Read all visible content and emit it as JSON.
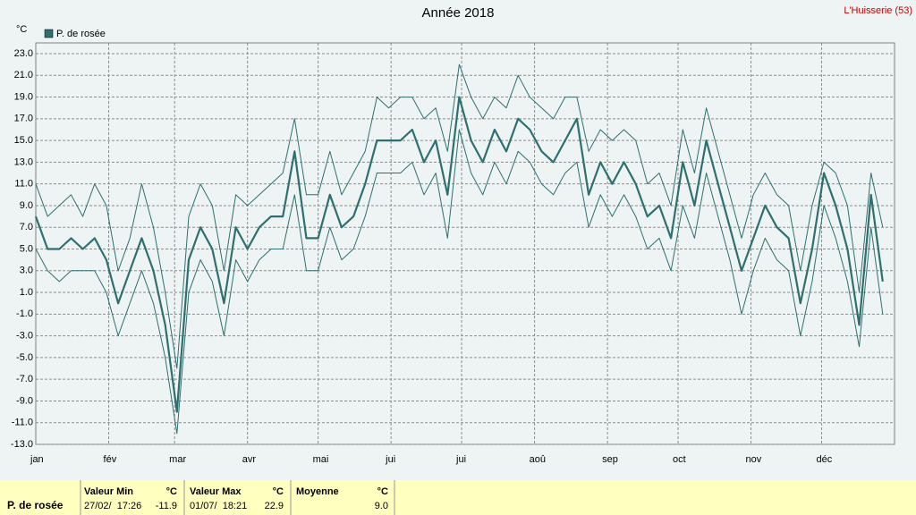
{
  "chart_data": {
    "type": "line",
    "title": "Année 2018",
    "station": "L'Huisserie (53)",
    "y_label": "°C",
    "x": [
      1,
      6,
      11,
      16,
      21,
      26,
      31,
      36,
      41,
      46,
      51,
      56,
      61,
      66,
      71,
      76,
      81,
      86,
      91,
      96,
      101,
      106,
      111,
      116,
      121,
      126,
      131,
      136,
      141,
      146,
      151,
      156,
      161,
      166,
      171,
      176,
      181,
      186,
      191,
      196,
      201,
      206,
      211,
      216,
      221,
      226,
      231,
      236,
      241,
      246,
      251,
      256,
      261,
      266,
      271,
      276,
      281,
      286,
      291,
      296,
      301,
      306,
      311,
      316,
      321,
      326,
      331,
      336,
      341,
      346,
      351,
      356,
      361
    ],
    "xlim": [
      1,
      366
    ],
    "xticks": [
      {
        "value": 1,
        "label": "jan"
      },
      {
        "value": 32,
        "label": "fév"
      },
      {
        "value": 60,
        "label": "mar"
      },
      {
        "value": 91,
        "label": "avr"
      },
      {
        "value": 121,
        "label": "mai"
      },
      {
        "value": 152,
        "label": "jui"
      },
      {
        "value": 182,
        "label": "jui"
      },
      {
        "value": 213,
        "label": "aoû"
      },
      {
        "value": 244,
        "label": "sep"
      },
      {
        "value": 274,
        "label": "oct"
      },
      {
        "value": 305,
        "label": "nov"
      },
      {
        "value": 335,
        "label": "déc"
      }
    ],
    "ylim": [
      -13,
      23
    ],
    "yticks": [
      {
        "value": -13,
        "label": "-13.0"
      },
      {
        "value": -11,
        "label": "-11.0"
      },
      {
        "value": -9,
        "label": "-9.0"
      },
      {
        "value": -7,
        "label": "-7.0"
      },
      {
        "value": -5,
        "label": "-5.0"
      },
      {
        "value": -3,
        "label": "-3.0"
      },
      {
        "value": -1,
        "label": "-1.0"
      },
      {
        "value": 1,
        "label": "1.0"
      },
      {
        "value": 3,
        "label": "3.0"
      },
      {
        "value": 5,
        "label": "5.0"
      },
      {
        "value": 7,
        "label": "7.0"
      },
      {
        "value": 9,
        "label": "9.0"
      },
      {
        "value": 11,
        "label": "11.0"
      },
      {
        "value": 13,
        "label": "13.0"
      },
      {
        "value": 15,
        "label": "15.0"
      },
      {
        "value": 17,
        "label": "17.0"
      },
      {
        "value": 19,
        "label": "19.0"
      },
      {
        "value": 21,
        "label": "21.0"
      },
      {
        "value": 23,
        "label": "23.0"
      }
    ],
    "grid": true,
    "series": [
      {
        "name": "P. de rosée",
        "color": "#2f6f6f",
        "values": [
          8,
          5,
          5,
          6,
          5,
          6,
          4,
          0,
          3,
          6,
          3,
          -2,
          -10,
          4,
          7,
          5,
          0,
          7,
          5,
          7,
          8,
          8,
          14,
          6,
          6,
          10,
          7,
          8,
          11,
          15,
          15,
          15,
          16,
          13,
          15,
          10,
          19,
          15,
          13,
          16,
          14,
          17,
          16,
          14,
          13,
          15,
          17,
          10,
          13,
          11,
          13,
          11,
          8,
          9,
          6,
          13,
          9,
          15,
          11,
          7,
          3,
          6,
          9,
          7,
          6,
          0,
          5,
          12,
          9,
          5,
          -2,
          10,
          2
        ],
        "max": [
          11,
          8,
          9,
          10,
          8,
          11,
          9,
          3,
          6,
          11,
          7,
          1,
          -6,
          8,
          11,
          9,
          3,
          10,
          9,
          10,
          11,
          12,
          17,
          10,
          10,
          14,
          10,
          12,
          14,
          19,
          18,
          19,
          19,
          17,
          18,
          14,
          22,
          19,
          17,
          19,
          18,
          21,
          19,
          18,
          17,
          19,
          19,
          14,
          16,
          15,
          16,
          15,
          11,
          12,
          9,
          16,
          12,
          18,
          14,
          10,
          6,
          10,
          12,
          10,
          9,
          3,
          9,
          13,
          12,
          9,
          1,
          12,
          7
        ],
        "min": [
          5,
          3,
          2,
          3,
          3,
          3,
          1,
          -3,
          0,
          3,
          0,
          -5,
          -12,
          1,
          4,
          2,
          -3,
          4,
          2,
          4,
          5,
          5,
          10,
          3,
          3,
          7,
          4,
          5,
          8,
          12,
          12,
          12,
          13,
          10,
          12,
          6,
          16,
          12,
          10,
          13,
          11,
          14,
          13,
          11,
          10,
          12,
          13,
          7,
          10,
          8,
          10,
          8,
          5,
          6,
          3,
          9,
          6,
          12,
          8,
          4,
          -1,
          3,
          6,
          4,
          3,
          -3,
          2,
          9,
          6,
          2,
          -4,
          7,
          -1
        ]
      }
    ],
    "stats": {
      "headers": [
        "Valeur Min",
        "°C",
        "Valeur Max",
        "°C",
        "Moyenne",
        "°C"
      ],
      "min_date": "27/02/  17:26",
      "min_value": "-11.9",
      "max_date": "01/07/  18:21",
      "max_value": "22.9",
      "mean": "9.0"
    }
  }
}
